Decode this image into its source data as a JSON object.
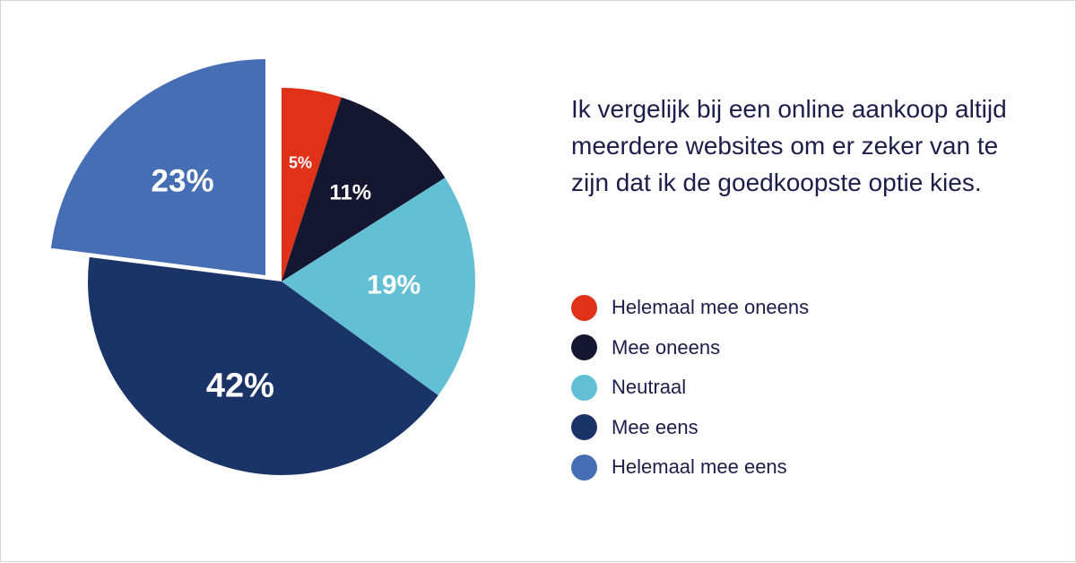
{
  "question": "Ik vergelijk bij een online aankoop altijd meerdere websites om er zeker van te zijn dat ik de goedkoopste optie kies.",
  "chart_data": {
    "type": "pie",
    "title": "",
    "slices": [
      {
        "label": "Helemaal mee oneens",
        "value": 5,
        "display": "5%",
        "color": "#e03219"
      },
      {
        "label": "Mee oneens",
        "value": 11,
        "display": "11%",
        "color": "#15162f"
      },
      {
        "label": "Neutraal",
        "value": 19,
        "display": "19%",
        "color": "#63c0d4"
      },
      {
        "label": "Mee eens",
        "value": 42,
        "display": "42%",
        "color": "#1b3468"
      },
      {
        "label": "Helemaal mee eens",
        "value": 23,
        "display": "23%",
        "color": "#466eb4"
      }
    ],
    "exploded_slice": "Helemaal mee eens",
    "legend_position": "right"
  }
}
